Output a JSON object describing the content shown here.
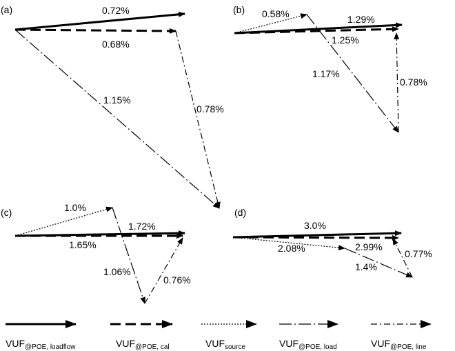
{
  "panels": {
    "a": {
      "title": "(a)",
      "labels": {
        "loadflow": "0.72%",
        "cal": "0.68%",
        "load": "1.15%",
        "line": "0.78%"
      }
    },
    "b": {
      "title": "(b)",
      "labels": {
        "source": "0.58%",
        "loadflow": "1.29%",
        "cal": "1.25%",
        "load": "1.17%",
        "line": "0.78%"
      }
    },
    "c": {
      "title": "(c)",
      "labels": {
        "source": "1.0%",
        "loadflow": "1.72%",
        "cal": "1.65%",
        "load": "1.06%",
        "line": "0.76%"
      }
    },
    "d": {
      "title": "(d)",
      "labels": {
        "loadflow": "3.0%",
        "source": "2.08%",
        "cal": "2.99%",
        "load": "1.4%",
        "line": "0.77%"
      }
    }
  },
  "legend": [
    {
      "main": "VUF",
      "sub": "@POE, loadflow",
      "style": "solid"
    },
    {
      "main": "VUF",
      "sub": "@POE, cal",
      "style": "dashed"
    },
    {
      "main": "VUF",
      "sub": "source",
      "style": "dotted"
    },
    {
      "main": "VUF",
      "sub": "@POE, load",
      "style": "longdash"
    },
    {
      "main": "VUF",
      "sub": "@POE, line",
      "style": "dashdot"
    }
  ]
}
